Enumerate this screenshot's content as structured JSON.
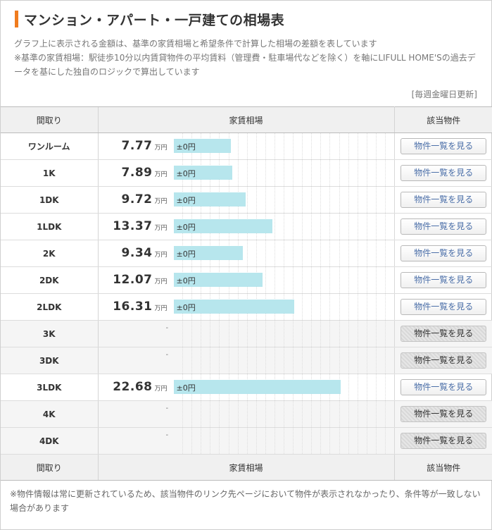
{
  "title": "マンション・アパート・一戸建ての相場表",
  "description": [
    "グラフ上に表示される金額は、基準の家賃相場と希望条件で計算した相場の差額を表しています",
    "※基準の家賃相場：駅徒歩10分以内賃貸物件の平均賃料（管理費・駐車場代などを除く）を軸にLIFULL HOME'Sの過去データを基にした独自のロジックで算出しています"
  ],
  "updated": "[毎週金曜日更新]",
  "columns": {
    "layout": "間取り",
    "rent": "家賃相場",
    "listings": "該当物件"
  },
  "unit": "万円",
  "button_label": "物件一覧を見る",
  "accent_color": "#f07c1e",
  "bar_color": "#b7e6ed",
  "rows": [
    {
      "layout": "ワンルーム",
      "price": "7.77",
      "value": 7.77,
      "diff": "±0円"
    },
    {
      "layout": "1K",
      "price": "7.89",
      "value": 7.89,
      "diff": "±0円"
    },
    {
      "layout": "1DK",
      "price": "9.72",
      "value": 9.72,
      "diff": "±0円"
    },
    {
      "layout": "1LDK",
      "price": "13.37",
      "value": 13.37,
      "diff": "±0円"
    },
    {
      "layout": "2K",
      "price": "9.34",
      "value": 9.34,
      "diff": "±0円"
    },
    {
      "layout": "2DK",
      "price": "12.07",
      "value": 12.07,
      "diff": "±0円"
    },
    {
      "layout": "2LDK",
      "price": "16.31",
      "value": 16.31,
      "diff": "±0円"
    },
    {
      "layout": "3K",
      "price": "-",
      "value": null,
      "diff": ""
    },
    {
      "layout": "3DK",
      "price": "-",
      "value": null,
      "diff": ""
    },
    {
      "layout": "3LDK",
      "price": "22.68",
      "value": 22.68,
      "diff": "±0円"
    },
    {
      "layout": "4K",
      "price": "-",
      "value": null,
      "diff": ""
    },
    {
      "layout": "4DK",
      "price": "-",
      "value": null,
      "diff": ""
    }
  ],
  "note": "※物件情報は常に更新されているため、該当物件のリンク先ページにおいて物件が表示されなかったり、条件等が一致しない場合があります"
}
